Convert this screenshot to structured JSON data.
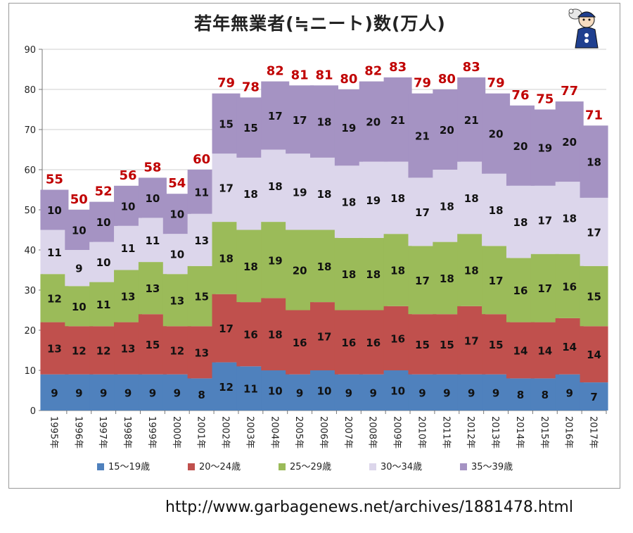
{
  "source_url": "http://www.garbagenews.net/archives/1881478.html",
  "chart_data": {
    "type": "bar",
    "stacked": true,
    "title": "若年無業者(≒ニート)数(万人)",
    "categories": [
      "1995年",
      "1996年",
      "1997年",
      "1998年",
      "1999年",
      "2000年",
      "2001年",
      "2002年",
      "2003年",
      "2004年",
      "2005年",
      "2006年",
      "2007年",
      "2008年",
      "2009年",
      "2010年",
      "2011年",
      "2012年",
      "2013年",
      "2014年",
      "2015年",
      "2016年",
      "2017年"
    ],
    "series": [
      {
        "name": "15〜19歳",
        "color": "#4f81bd",
        "values": [
          9,
          9,
          9,
          9,
          9,
          9,
          8,
          12,
          11,
          10,
          9,
          10,
          9,
          9,
          10,
          9,
          9,
          9,
          9,
          8,
          8,
          9,
          7
        ]
      },
      {
        "name": "20〜24歳",
        "color": "#c0504d",
        "values": [
          13,
          12,
          12,
          13,
          15,
          12,
          13,
          17,
          16,
          18,
          16,
          17,
          16,
          16,
          16,
          15,
          15,
          17,
          15,
          14,
          14,
          14,
          14
        ]
      },
      {
        "name": "25〜29歳",
        "color": "#9bbb59",
        "values": [
          12,
          10,
          11,
          13,
          13,
          13,
          15,
          18,
          18,
          19,
          20,
          18,
          18,
          18,
          18,
          17,
          18,
          18,
          17,
          16,
          17,
          16,
          15
        ]
      },
      {
        "name": "30〜34歳",
        "color": "#dcd6eb",
        "values": [
          11,
          9,
          10,
          11,
          11,
          10,
          13,
          17,
          18,
          18,
          19,
          18,
          18,
          19,
          18,
          17,
          18,
          18,
          18,
          18,
          17,
          18,
          17
        ]
      },
      {
        "name": "35〜39歳",
        "color": "#a593c3",
        "values": [
          10,
          10,
          10,
          10,
          10,
          10,
          11,
          15,
          15,
          17,
          17,
          18,
          19,
          20,
          21,
          21,
          20,
          21,
          20,
          20,
          19,
          20,
          18
        ]
      }
    ],
    "totals": [
      55,
      50,
      52,
      56,
      58,
      54,
      60,
      79,
      78,
      82,
      81,
      81,
      80,
      82,
      83,
      79,
      80,
      83,
      79,
      76,
      75,
      77,
      71
    ],
    "ylim": [
      0,
      90
    ],
    "yticks": [
      0,
      10,
      20,
      30,
      40,
      50,
      60,
      70,
      80,
      90
    ],
    "grid": true,
    "legend_position": "bottom",
    "xlabel": "",
    "ylabel": ""
  }
}
